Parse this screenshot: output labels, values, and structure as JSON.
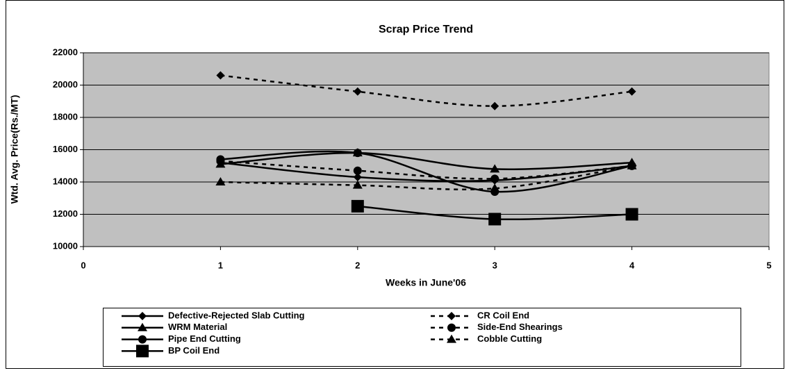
{
  "chart_data": {
    "type": "line",
    "title": "Scrap Price Trend",
    "x_label": "Weeks in June'06",
    "y_label": "Wtd. Avg. Price(Rs./MT)",
    "x": [
      1,
      2,
      3,
      4
    ],
    "xlim": [
      0,
      5
    ],
    "xticks": [
      0,
      1,
      2,
      3,
      4,
      5
    ],
    "ylim": [
      10000,
      22000
    ],
    "yticks": [
      10000,
      12000,
      14000,
      16000,
      18000,
      20000,
      22000
    ],
    "grid": true,
    "smooth": true,
    "legend": "bottom",
    "series": [
      {
        "name": "Defective-Rejected Slab Cutting",
        "color": "#000000",
        "marker": "diamond",
        "dashed": false,
        "values": [
          15200,
          14300,
          14100,
          15000
        ]
      },
      {
        "name": "CR Coil End",
        "color": "#000000",
        "marker": "diamond",
        "dashed": true,
        "values": [
          20600,
          19600,
          18700,
          19600
        ]
      },
      {
        "name": "WRM Material",
        "color": "#000000",
        "marker": "triangle",
        "dashed": false,
        "values": [
          15100,
          15800,
          14800,
          15200
        ]
      },
      {
        "name": "Side-End Shearings",
        "color": "#000000",
        "marker": "circle",
        "dashed": true,
        "values": [
          15300,
          14700,
          14200,
          15000
        ]
      },
      {
        "name": "Pipe End Cutting",
        "color": "#000000",
        "marker": "circle",
        "dashed": false,
        "values": [
          15400,
          15800,
          13400,
          15000
        ]
      },
      {
        "name": "Cobble Cutting",
        "color": "#000000",
        "marker": "triangle",
        "dashed": true,
        "values": [
          14000,
          13800,
          13600,
          15000
        ]
      },
      {
        "name": "BP Coil End",
        "color": "#000000",
        "marker": "square",
        "dashed": false,
        "values": [
          null,
          12500,
          11700,
          12000
        ]
      }
    ]
  }
}
